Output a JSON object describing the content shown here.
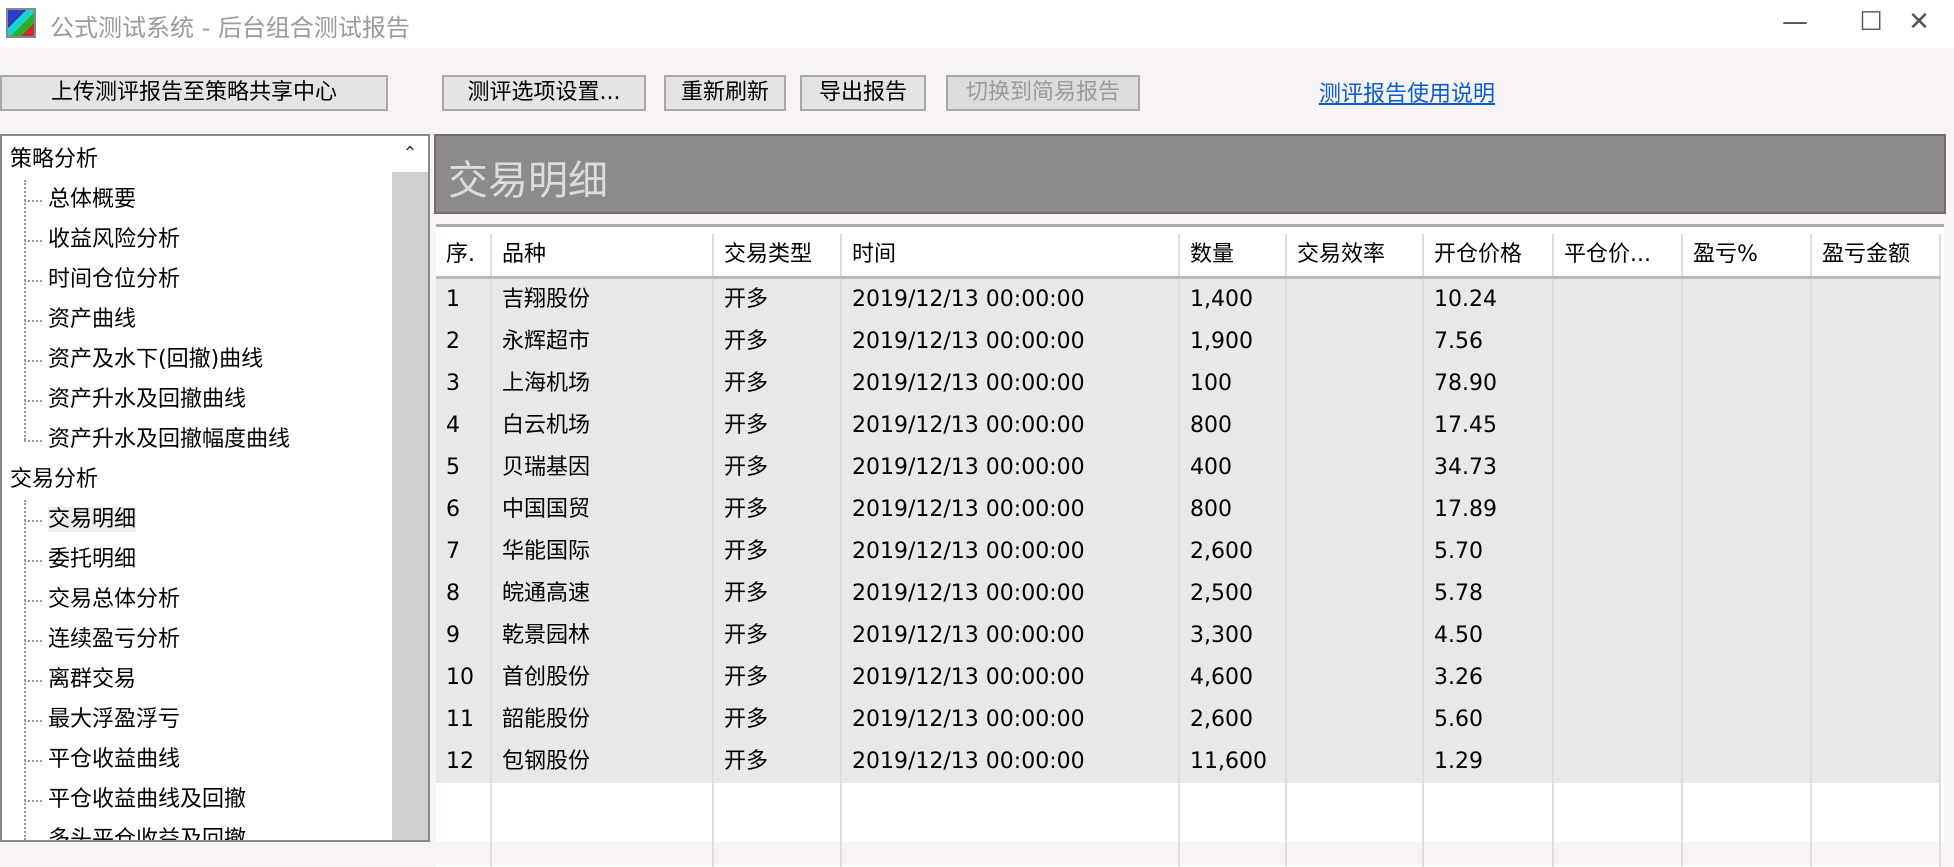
{
  "window": {
    "title": "公式测试系统 - 后台组合测试报告",
    "minimize": "—",
    "maximize": "☐",
    "close": "✕"
  },
  "toolbar": {
    "upload": "上传测评报告至策略共享中心",
    "options": "测评选项设置...",
    "refresh": "重新刷新",
    "export": "导出报告",
    "switch_simple": "切换到简易报告",
    "help_link": "测评报告使用说明"
  },
  "tree": {
    "groups": [
      {
        "label": "策略分析",
        "items": [
          "总体概要",
          "收益风险分析",
          "时间仓位分析",
          "资产曲线",
          "资产及水下(回撤)曲线",
          "资产升水及回撤曲线",
          "资产升水及回撤幅度曲线"
        ]
      },
      {
        "label": "交易分析",
        "items": [
          "交易明细",
          "委托明细",
          "交易总体分析",
          "连续盈亏分析",
          "离群交易",
          "最大浮盈浮亏",
          "平仓收益曲线",
          "平仓收益曲线及回撤",
          "多头平仓收益及回撤"
        ]
      }
    ],
    "selected": "交易明细"
  },
  "panel": {
    "title": "交易明细"
  },
  "table": {
    "columns": [
      "序.",
      "品种",
      "交易类型",
      "时间",
      "数量",
      "交易效率",
      "开仓价格",
      "平仓价...",
      "盈亏%",
      "盈亏金额"
    ],
    "rows": [
      [
        "1",
        "吉翔股份",
        "开多",
        "2019/12/13 00:00:00",
        "1,400",
        "",
        "10.24",
        "",
        "",
        ""
      ],
      [
        "2",
        "永辉超市",
        "开多",
        "2019/12/13 00:00:00",
        "1,900",
        "",
        "7.56",
        "",
        "",
        ""
      ],
      [
        "3",
        "上海机场",
        "开多",
        "2019/12/13 00:00:00",
        "100",
        "",
        "78.90",
        "",
        "",
        ""
      ],
      [
        "4",
        "白云机场",
        "开多",
        "2019/12/13 00:00:00",
        "800",
        "",
        "17.45",
        "",
        "",
        ""
      ],
      [
        "5",
        "贝瑞基因",
        "开多",
        "2019/12/13 00:00:00",
        "400",
        "",
        "34.73",
        "",
        "",
        ""
      ],
      [
        "6",
        "中国国贸",
        "开多",
        "2019/12/13 00:00:00",
        "800",
        "",
        "17.89",
        "",
        "",
        ""
      ],
      [
        "7",
        "华能国际",
        "开多",
        "2019/12/13 00:00:00",
        "2,600",
        "",
        "5.70",
        "",
        "",
        ""
      ],
      [
        "8",
        "皖通高速",
        "开多",
        "2019/12/13 00:00:00",
        "2,500",
        "",
        "5.78",
        "",
        "",
        ""
      ],
      [
        "9",
        "乾景园林",
        "开多",
        "2019/12/13 00:00:00",
        "3,300",
        "",
        "4.50",
        "",
        "",
        ""
      ],
      [
        "10",
        "首创股份",
        "开多",
        "2019/12/13 00:00:00",
        "4,600",
        "",
        "3.26",
        "",
        "",
        ""
      ],
      [
        "11",
        "韶能股份",
        "开多",
        "2019/12/13 00:00:00",
        "2,600",
        "",
        "5.60",
        "",
        "",
        ""
      ],
      [
        "12",
        "包钢股份",
        "开多",
        "2019/12/13 00:00:00",
        "11,600",
        "",
        "1.29",
        "",
        "",
        ""
      ]
    ]
  },
  "colors": {
    "link": "#0a5cd2",
    "panel_header": "#8d8a8d",
    "row_bg": "#e8e8e8"
  }
}
